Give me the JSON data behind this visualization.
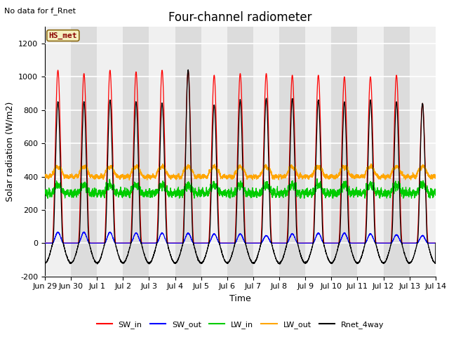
{
  "title": "Four-channel radiometer",
  "top_left_text": "No data for f_Rnet",
  "station_label": "HS_met",
  "ylabel": "Solar radiation (W/m2)",
  "xlabel": "Time",
  "ylim": [
    -200,
    1300
  ],
  "yticks": [
    -200,
    0,
    200,
    400,
    600,
    800,
    1000,
    1200
  ],
  "x_tick_labels": [
    "Jun 29",
    "Jun 30",
    "Jul 1",
    "Jul 2",
    "Jul 3",
    "Jul 4",
    "Jul 5",
    "Jul 6",
    "Jul 7",
    "Jul 8",
    "Jul 9",
    "Jul 10",
    "Jul 11",
    "Jul 12",
    "Jul 13",
    "Jul 14"
  ],
  "n_days": 15,
  "SW_in_peaks": [
    1040,
    1020,
    1040,
    1030,
    1040,
    1040,
    1010,
    1020,
    1020,
    1010,
    1010,
    1000,
    1000,
    1010,
    840
  ],
  "SW_out_peaks": [
    65,
    65,
    65,
    60,
    60,
    60,
    55,
    55,
    45,
    55,
    60,
    60,
    55,
    50,
    45
  ],
  "Rnet_peaks": [
    850,
    850,
    860,
    850,
    840,
    1040,
    830,
    860,
    870,
    870,
    860,
    850,
    860,
    850,
    840
  ],
  "LW_in_base": 300,
  "LW_out_base": 400,
  "colors": {
    "SW_in": "#ff0000",
    "SW_out": "#0000ff",
    "LW_in": "#00cc00",
    "LW_out": "#ffa500",
    "Rnet_4way": "#000000",
    "bg_gray": "#dcdcdc",
    "bg_white": "#f0f0f0"
  },
  "legend_entries": [
    "SW_in",
    "SW_out",
    "LW_in",
    "LW_out",
    "Rnet_4way"
  ],
  "title_fontsize": 12,
  "label_fontsize": 9,
  "tick_fontsize": 8
}
